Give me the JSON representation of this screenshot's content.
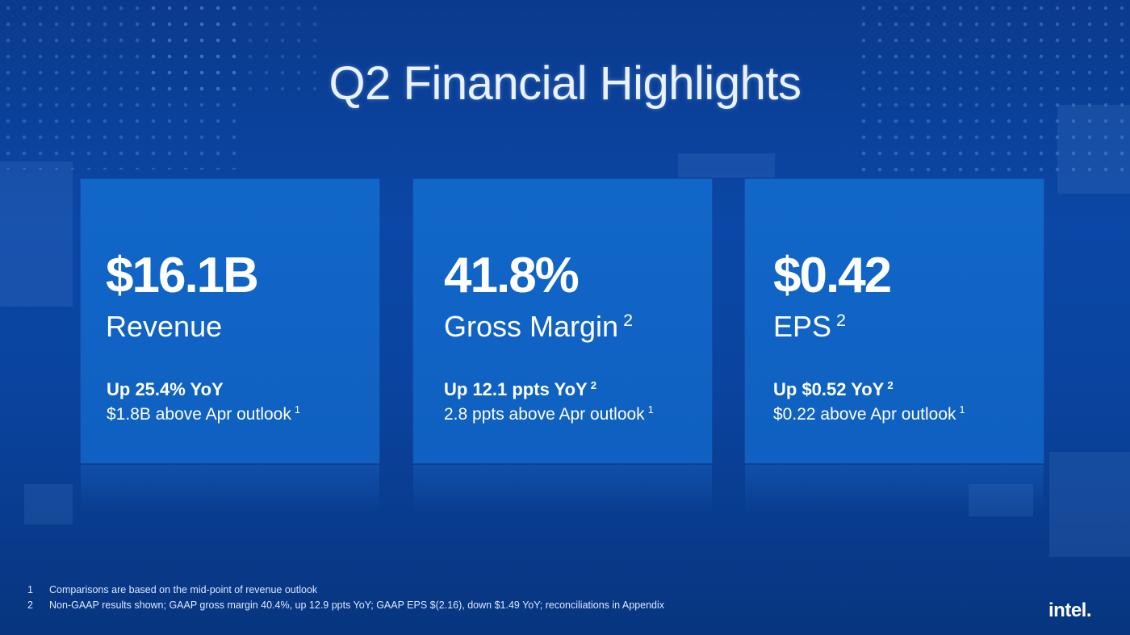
{
  "title": "Q2 Financial Highlights",
  "cards": [
    {
      "metric": "$16.1B",
      "label": "Revenue",
      "label_note": "",
      "change": "Up 25.4% YoY",
      "change_note": "",
      "outlook": "$1.8B above Apr outlook",
      "outlook_note": "1"
    },
    {
      "metric": "41.8%",
      "label": "Gross Margin",
      "label_note": "2",
      "change": "Up 12.1 ppts YoY",
      "change_note": "2",
      "outlook": "2.8 ppts above Apr outlook",
      "outlook_note": "1"
    },
    {
      "metric": "$0.42",
      "label": "EPS",
      "label_note": "2",
      "change": "Up $0.52 YoY",
      "change_note": "2",
      "outlook": "$0.22 above Apr outlook",
      "outlook_note": "1"
    }
  ],
  "footnotes": [
    {
      "num": "1",
      "text": "Comparisons are based on the mid-point of revenue outlook"
    },
    {
      "num": "2",
      "text": "Non-GAAP results shown; GAAP gross margin 40.4%, up 12.9 ppts YoY; GAAP EPS $(2.16), down $1.49 YoY; reconciliations in Appendix"
    }
  ],
  "logo": "intel.",
  "colors": {
    "background": "#0b47a6",
    "card": "#1167c9",
    "text": "#ffffff"
  }
}
